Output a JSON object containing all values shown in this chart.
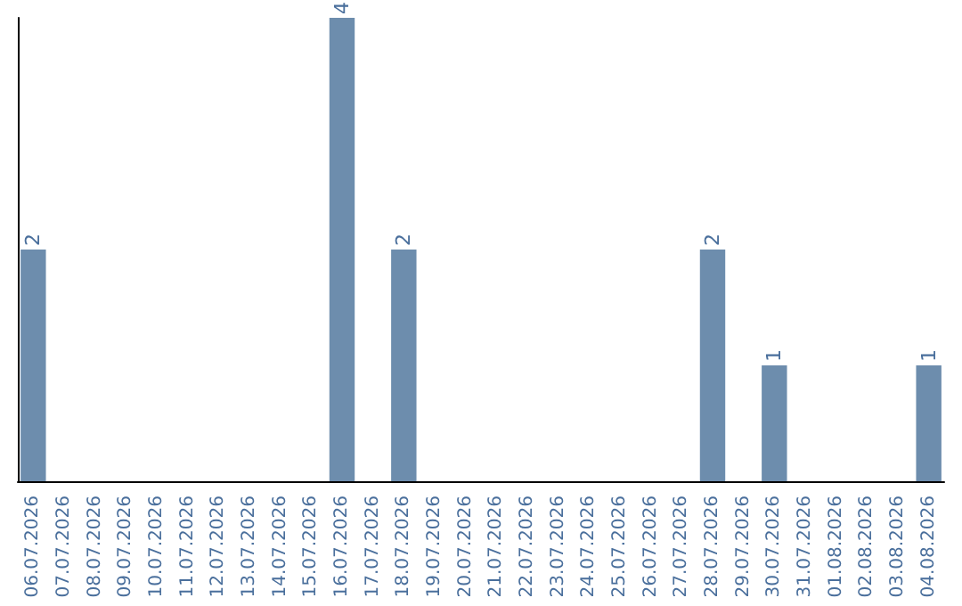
{
  "chart_data": {
    "type": "bar",
    "categories": [
      "06.07.2026",
      "07.07.2026",
      "08.07.2026",
      "09.07.2026",
      "10.07.2026",
      "11.07.2026",
      "12.07.2026",
      "13.07.2026",
      "14.07.2026",
      "15.07.2026",
      "16.07.2026",
      "17.07.2026",
      "18.07.2026",
      "19.07.2026",
      "20.07.2026",
      "21.07.2026",
      "22.07.2026",
      "23.07.2026",
      "24.07.2026",
      "25.07.2026",
      "26.07.2026",
      "27.07.2026",
      "28.07.2026",
      "29.07.2026",
      "30.07.2026",
      "31.07.2026",
      "01.08.2026",
      "02.08.2026",
      "03.08.2026",
      "04.08.2026"
    ],
    "values": [
      2,
      0,
      0,
      0,
      0,
      0,
      0,
      0,
      0,
      0,
      4,
      0,
      2,
      0,
      0,
      0,
      0,
      0,
      0,
      0,
      0,
      0,
      2,
      0,
      1,
      0,
      0,
      0,
      0,
      1
    ],
    "color": "#6d8dad",
    "value_labels": [
      "2",
      null,
      null,
      null,
      null,
      null,
      null,
      null,
      null,
      null,
      "4",
      null,
      "2",
      null,
      null,
      null,
      null,
      null,
      null,
      null,
      null,
      null,
      "2",
      null,
      "1",
      null,
      null,
      null,
      null,
      "1"
    ],
    "grid": false
  }
}
